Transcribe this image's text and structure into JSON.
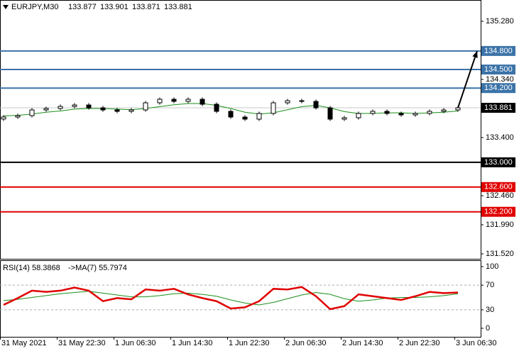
{
  "chart_data": {
    "type": "candlestick",
    "symbol": "EURJPY,M30",
    "header_ohlc": [
      133.877,
      133.901,
      133.871,
      133.881
    ],
    "categories": [
      "31 May 2021",
      null,
      null,
      null,
      "31 May 22:30",
      null,
      null,
      null,
      "1 Jun 06:30",
      null,
      null,
      null,
      "1 Jun 14:30",
      null,
      null,
      null,
      "1 Jun 22:30",
      null,
      null,
      null,
      "2 Jun 06:30",
      null,
      null,
      null,
      "2 Jun 14:30",
      null,
      null,
      null,
      "2 Jun 22:30",
      null,
      null,
      null,
      "3 Jun 06:30"
    ],
    "open": [
      133.7,
      133.732,
      133.755,
      133.847,
      133.87,
      133.904,
      133.927,
      133.881,
      133.847,
      133.824,
      133.847,
      133.962,
      134.019,
      133.985,
      134.019,
      133.939,
      133.824,
      133.732,
      133.698,
      133.79,
      133.962,
      133.996,
      133.985,
      133.881,
      133.698,
      133.721,
      133.79,
      133.824,
      133.79,
      133.767,
      133.79,
      133.824,
      133.847
    ],
    "high": [
      133.762,
      133.785,
      133.877,
      133.9,
      133.934,
      133.957,
      133.957,
      133.911,
      133.877,
      133.877,
      133.992,
      134.049,
      134.049,
      134.049,
      134.049,
      133.969,
      133.854,
      133.762,
      133.82,
      133.992,
      134.026,
      134.026,
      134.015,
      133.911,
      133.751,
      133.82,
      133.854,
      133.854,
      133.82,
      133.82,
      133.854,
      133.877,
      133.911
    ],
    "low": [
      133.67,
      133.702,
      133.725,
      133.817,
      133.84,
      133.874,
      133.851,
      133.817,
      133.794,
      133.794,
      133.817,
      133.932,
      133.955,
      133.955,
      133.909,
      133.794,
      133.702,
      133.668,
      133.668,
      133.76,
      133.932,
      133.955,
      133.851,
      133.668,
      133.668,
      133.691,
      133.76,
      133.76,
      133.737,
      133.737,
      133.76,
      133.794,
      133.817
    ],
    "close": [
      133.732,
      133.755,
      133.847,
      133.87,
      133.904,
      133.927,
      133.881,
      133.847,
      133.824,
      133.847,
      133.962,
      134.019,
      133.985,
      134.019,
      133.939,
      133.824,
      133.732,
      133.698,
      133.79,
      133.962,
      133.996,
      133.985,
      133.881,
      133.698,
      133.721,
      133.79,
      133.824,
      133.79,
      133.767,
      133.79,
      133.824,
      133.847,
      133.881
    ],
    "ma": {
      "color": "#1a8f1a",
      "values": [
        133.75,
        133.76,
        133.78,
        133.81,
        133.83,
        133.86,
        133.87,
        133.87,
        133.86,
        133.85,
        133.87,
        133.9,
        133.93,
        133.95,
        133.95,
        133.92,
        133.87,
        133.81,
        133.78,
        133.8,
        133.85,
        133.9,
        133.92,
        133.88,
        133.82,
        133.79,
        133.79,
        133.8,
        133.8,
        133.79,
        133.8,
        133.81,
        133.83
      ]
    },
    "ylim": [
      131.44,
      135.624
    ],
    "yticks": [
      {
        "value": 135.28,
        "label": "135.280"
      },
      {
        "value": 134.34,
        "label": "134.340"
      },
      {
        "value": 133.4,
        "label": "133.400"
      },
      {
        "value": 132.46,
        "label": "132.460"
      },
      {
        "value": 131.99,
        "label": "131.990"
      },
      {
        "value": 131.52,
        "label": "131.520"
      }
    ],
    "levels": [
      {
        "value": 134.8,
        "label": "134.800",
        "color": "#3b73a8"
      },
      {
        "value": 134.5,
        "label": "134.500",
        "color": "#3b73a8"
      },
      {
        "value": 134.2,
        "label": "134.200",
        "color": "#3b73a8"
      },
      {
        "value": 133,
        "label": "133.000",
        "color": "#000000"
      },
      {
        "value": 132.6,
        "label": "132.600",
        "color": "#e00000"
      },
      {
        "value": 132.2,
        "label": "132.200",
        "color": "#e00000"
      }
    ],
    "last_price": 133.881,
    "rsi": {
      "title": "RSI(14) 58.3868",
      "ma_title": "->MA(7) 55.7974",
      "color": "#e00000",
      "ma_color": "#1a8f1a",
      "values": [
        38,
        49,
        61,
        59,
        61,
        66,
        61,
        44,
        49,
        47,
        63,
        61,
        64,
        55,
        49,
        44,
        32,
        34,
        44,
        64,
        63,
        67,
        52,
        31,
        36,
        55,
        52,
        49,
        46,
        52,
        59,
        57,
        58
      ],
      "ma_values": [
        45,
        47,
        50,
        53,
        56,
        58,
        60,
        57,
        54,
        51,
        51,
        53,
        56,
        57,
        55,
        52,
        46,
        41,
        38,
        42,
        48,
        54,
        58,
        55,
        48,
        44,
        46,
        49,
        50,
        50,
        51,
        53,
        56
      ],
      "ylim": [
        -13.8,
        109.2
      ],
      "yticks": [
        0,
        30,
        70,
        100
      ],
      "dashed_levels": [
        30,
        70
      ]
    }
  }
}
